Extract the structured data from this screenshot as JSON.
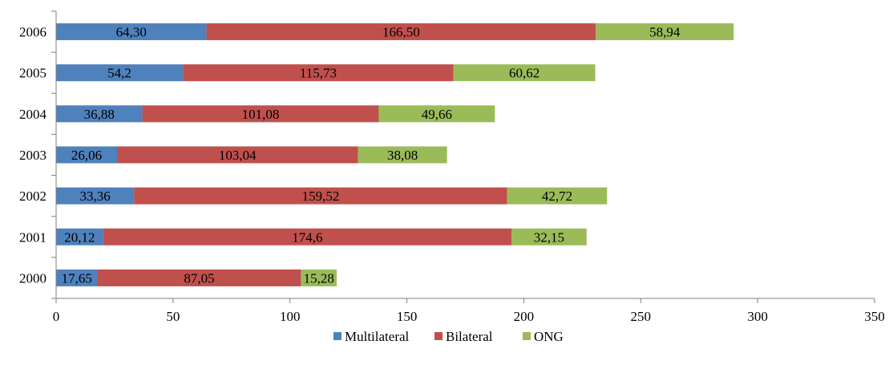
{
  "chart_data": {
    "type": "bar",
    "orientation": "horizontal",
    "stacked": true,
    "categories": [
      "2000",
      "2001",
      "2002",
      "2003",
      "2004",
      "2005",
      "2006"
    ],
    "series": [
      {
        "name": "Multilateral",
        "color": "#4f81bd",
        "values": [
          17.65,
          20.12,
          33.36,
          26.06,
          36.88,
          54.2,
          64.3
        ],
        "labels": [
          "17,65",
          "20,12",
          "33,36",
          "26,06",
          "36,88",
          "54,2",
          "64,30"
        ]
      },
      {
        "name": "Bilateral",
        "color": "#c0504d",
        "values": [
          87.05,
          174.6,
          159.52,
          103.04,
          101.08,
          115.73,
          166.5
        ],
        "labels": [
          "87,05",
          "174,6",
          "159,52",
          "103,04",
          "101,08",
          "115,73",
          "166,50"
        ]
      },
      {
        "name": "ONG",
        "color": "#9bbb59",
        "values": [
          15.28,
          32.15,
          42.72,
          38.08,
          49.66,
          60.62,
          58.94
        ],
        "labels": [
          "15,28",
          "32,15",
          "42,72",
          "38,08",
          "49,66",
          "60,62",
          "58,94"
        ]
      }
    ],
    "xlim": [
      0,
      350
    ],
    "xticks": [
      "0",
      "50",
      "100",
      "150",
      "200",
      "250",
      "300",
      "350"
    ],
    "grid": false,
    "legend_position": "bottom"
  }
}
